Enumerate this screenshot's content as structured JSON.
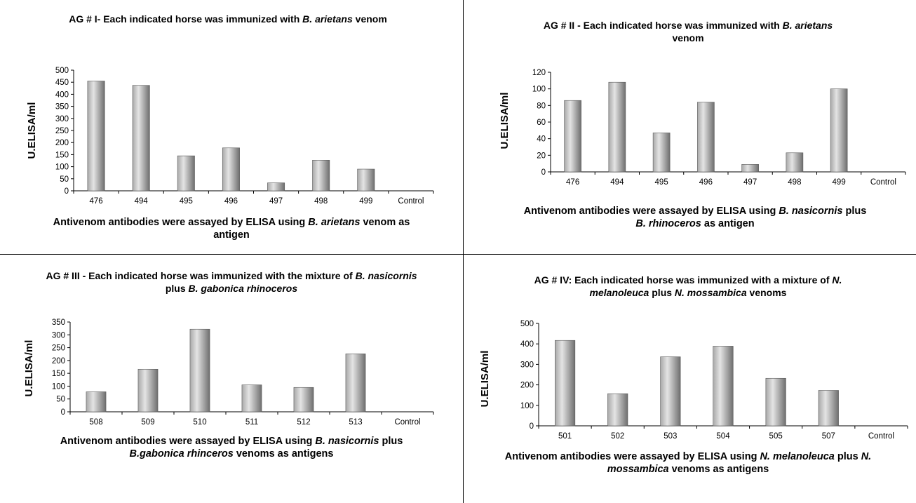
{
  "colors": {
    "bar_light": "#e4e4e4",
    "bar_mid": "#a8a8a8",
    "bar_dark": "#6e6e6e",
    "axis": "#000000",
    "divider": "#000000"
  },
  "chart_data": [
    {
      "type": "bar",
      "title_parts": [
        {
          "t": "AG # I- Each indicated horse was immunized with "
        },
        {
          "t": "B.",
          "i": true
        },
        {
          "t": " "
        },
        {
          "t": "arietans",
          "i": true
        },
        {
          "t": " venom"
        }
      ],
      "caption_parts": [
        {
          "t": "Antivenom antibodies were assayed by ELISA using "
        },
        {
          "t": "B. arietans",
          "i": true
        },
        {
          "t": " venom as antigen"
        }
      ],
      "ylabel": "U.ELISA/ml",
      "categories": [
        "476",
        "494",
        "495",
        "496",
        "497",
        "498",
        "499",
        "Control"
      ],
      "values": [
        455,
        437,
        145,
        178,
        33,
        127,
        90,
        0
      ],
      "yticks": [
        0,
        50,
        100,
        150,
        200,
        250,
        300,
        350,
        400,
        450,
        500
      ],
      "ylim": [
        0,
        500
      ],
      "grid": false
    },
    {
      "type": "bar",
      "title_parts": [
        {
          "t": "AG # II - Each indicated horse was immunized with "
        },
        {
          "t": "B. arietans",
          "i": true
        },
        {
          "t": " venom"
        }
      ],
      "caption_parts": [
        {
          "t": "Antivenom antibodies were assayed by ELISA using "
        },
        {
          "t": "B. nasicornis",
          "i": true
        },
        {
          "t": " plus "
        },
        {
          "t": "B. rhinoceros",
          "i": true
        },
        {
          "t": " as antigen"
        }
      ],
      "ylabel": "U.ELISA/ml",
      "categories": [
        "476",
        "494",
        "495",
        "496",
        "497",
        "498",
        "499",
        "Control"
      ],
      "values": [
        86,
        108,
        47,
        84,
        9,
        23,
        100,
        0
      ],
      "yticks": [
        0,
        20,
        40,
        60,
        80,
        100,
        120
      ],
      "ylim": [
        0,
        120
      ],
      "grid": false
    },
    {
      "type": "bar",
      "title_parts": [
        {
          "t": "AG # III - Each indicated horse was immunized with the mixture of "
        },
        {
          "t": "B. nasicornis",
          "i": true
        },
        {
          "t": " plus "
        },
        {
          "t": "B. gabonica rhinoceros",
          "i": true
        }
      ],
      "caption_parts": [
        {
          "t": "Antivenom antibodies were assayed by ELISA using "
        },
        {
          "t": "B.",
          "i": true
        },
        {
          "t": " "
        },
        {
          "t": "nasicornis",
          "i": true
        },
        {
          "t": " plus "
        },
        {
          "t": "B.gabonica rhinceros",
          "i": true
        },
        {
          "t": " venoms as antigens"
        }
      ],
      "ylabel": "U.ELISA/ml",
      "categories": [
        "508",
        "509",
        "510",
        "511",
        "512",
        "513",
        "Control"
      ],
      "values": [
        78,
        166,
        322,
        105,
        95,
        226,
        0
      ],
      "yticks": [
        0,
        50,
        100,
        150,
        200,
        250,
        300,
        350
      ],
      "ylim": [
        0,
        350
      ],
      "grid": false
    },
    {
      "type": "bar",
      "title_parts": [
        {
          "t": "AG #  IV: Each indicated horse was immunized with a mixture of "
        },
        {
          "t": "N.",
          "i": true
        },
        {
          "t": " "
        },
        {
          "t": "melanoleuca",
          "i": true
        },
        {
          "t": " plus "
        },
        {
          "t": "N. mossambica",
          "i": true
        },
        {
          "t": " venoms"
        }
      ],
      "caption_parts": [
        {
          "t": "Antivenom antibodies were assayed by ELISA using "
        },
        {
          "t": "N.",
          "i": true
        },
        {
          "t": " "
        },
        {
          "t": "melanoleuca",
          "i": true
        },
        {
          "t": " plus "
        },
        {
          "t": "N. mossambica",
          "i": true
        },
        {
          "t": " venoms as antigens"
        }
      ],
      "ylabel": "U.ELISA/ml",
      "categories": [
        "501",
        "502",
        "503",
        "504",
        "505",
        "507",
        "Control"
      ],
      "values": [
        417,
        157,
        337,
        389,
        232,
        173,
        0
      ],
      "yticks": [
        0,
        100,
        200,
        300,
        400,
        500
      ],
      "ylim": [
        0,
        500
      ],
      "grid": false
    }
  ]
}
